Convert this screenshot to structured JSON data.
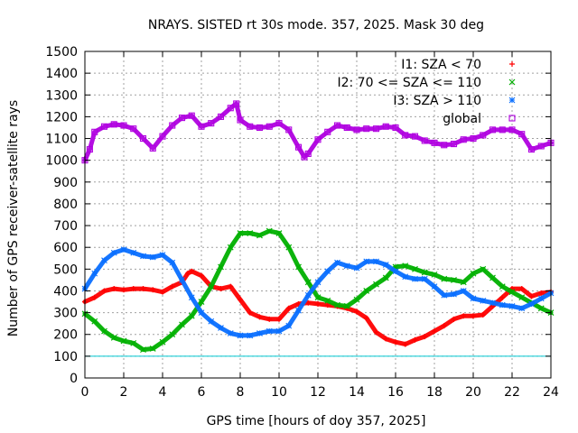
{
  "chart_data": {
    "type": "scatter",
    "title": "NRAYS. SISTED rt 30s mode. 357, 2025. Mask 30 deg",
    "xlabel": "GPS time [hours of doy 357, 2025]",
    "ylabel": "Number of GPS receiver-satellite rays",
    "xlim": [
      0,
      24
    ],
    "ylim": [
      0,
      1500
    ],
    "grid": true,
    "legend_position": "top-right",
    "x_ticks": [
      0,
      2,
      4,
      6,
      8,
      10,
      12,
      14,
      16,
      18,
      20,
      22,
      24
    ],
    "x_tick_labels": [
      "0",
      "2",
      "4",
      "6",
      "8",
      "10",
      "12",
      "14",
      "16",
      "18",
      "20",
      "22",
      "24"
    ],
    "y_ticks": [
      0,
      100,
      200,
      300,
      400,
      500,
      600,
      700,
      800,
      900,
      1000,
      1100,
      1200,
      1300,
      1400,
      1500
    ],
    "y_tick_labels": [
      "0",
      "100",
      "200",
      "300",
      "400",
      "500",
      "600",
      "700",
      "800",
      "900",
      "1000",
      "1100",
      "1200",
      "1300",
      "1400",
      "1500"
    ],
    "reference_line": {
      "y": 100,
      "color": "#00c8d2"
    },
    "series": [
      {
        "name": "I1: SZA < 70",
        "color": "#ff0000",
        "marker": "plus",
        "x": [
          0,
          0.5,
          1,
          1.5,
          2,
          2.5,
          3,
          3.5,
          4,
          4.5,
          5,
          5.3,
          5.5,
          6,
          6.5,
          7,
          7.5,
          8,
          8.5,
          9,
          9.5,
          10,
          10.5,
          11,
          11.5,
          12,
          12.5,
          13,
          13.5,
          14,
          14.5,
          15,
          15.5,
          16,
          16.5,
          17,
          17.5,
          18,
          18.5,
          19,
          19.5,
          20,
          20.5,
          21,
          21.5,
          22,
          22.5,
          23,
          23.5,
          24
        ],
        "y": [
          350,
          370,
          400,
          410,
          405,
          410,
          410,
          405,
          395,
          420,
          440,
          480,
          490,
          470,
          420,
          410,
          420,
          360,
          300,
          280,
          270,
          270,
          320,
          340,
          345,
          340,
          335,
          330,
          320,
          305,
          275,
          210,
          180,
          165,
          155,
          175,
          190,
          215,
          240,
          270,
          285,
          285,
          290,
          330,
          370,
          410,
          410,
          375,
          390,
          395
        ]
      },
      {
        "name": "I2: 70 <= SZA <= 110",
        "color": "#00b000",
        "marker": "cross",
        "x": [
          0,
          0.5,
          1,
          1.5,
          2,
          2.5,
          3,
          3.5,
          4,
          4.5,
          5,
          5.5,
          6,
          6.5,
          7,
          7.5,
          8,
          8.5,
          9,
          9.5,
          10,
          10.5,
          11,
          11.5,
          12,
          12.5,
          13,
          13.5,
          14,
          14.5,
          15,
          15.5,
          16,
          16.5,
          17,
          17.5,
          18,
          18.5,
          19,
          19.5,
          20,
          20.5,
          21,
          21.5,
          22,
          22.5,
          23,
          23.5,
          24
        ],
        "y": [
          295,
          260,
          215,
          185,
          170,
          160,
          130,
          135,
          165,
          200,
          245,
          285,
          350,
          420,
          510,
          600,
          665,
          665,
          655,
          675,
          665,
          600,
          510,
          440,
          370,
          355,
          335,
          330,
          360,
          400,
          430,
          460,
          510,
          515,
          500,
          485,
          475,
          455,
          450,
          440,
          480,
          500,
          460,
          420,
          395,
          370,
          345,
          320,
          300
        ]
      },
      {
        "name": "I3: SZA > 110",
        "color": "#0a6fff",
        "marker": "asterisk",
        "x": [
          0,
          0.5,
          1,
          1.5,
          2,
          2.5,
          3,
          3.5,
          4,
          4.5,
          5,
          5.5,
          6,
          6.5,
          7,
          7.5,
          8,
          8.5,
          9,
          9.5,
          10,
          10.5,
          11,
          11.5,
          12,
          12.5,
          13,
          13.5,
          14,
          14.5,
          15,
          15.5,
          16,
          16.5,
          17,
          17.5,
          18,
          18.5,
          19,
          19.5,
          20,
          20.5,
          21,
          21.5,
          22,
          22.5,
          23,
          23.5,
          24
        ],
        "y": [
          410,
          480,
          540,
          575,
          590,
          575,
          560,
          555,
          565,
          530,
          450,
          370,
          300,
          260,
          230,
          205,
          195,
          195,
          205,
          215,
          215,
          240,
          310,
          380,
          440,
          490,
          530,
          515,
          505,
          535,
          535,
          520,
          490,
          465,
          455,
          455,
          420,
          380,
          385,
          400,
          365,
          355,
          345,
          335,
          330,
          320,
          340,
          365,
          390
        ]
      },
      {
        "name": "global",
        "color": "#b000e0",
        "marker": "square",
        "x": [
          0,
          0.25,
          0.5,
          1,
          1.5,
          2,
          2.5,
          3,
          3.5,
          4,
          4.5,
          5,
          5.5,
          6,
          6.5,
          7,
          7.5,
          7.8,
          8,
          8.5,
          9,
          9.5,
          10,
          10.5,
          11,
          11.3,
          11.5,
          12,
          12.5,
          13,
          13.5,
          14,
          14.5,
          15,
          15.5,
          16,
          16.5,
          17,
          17.5,
          18,
          18.5,
          19,
          19.5,
          20,
          20.5,
          21,
          21.5,
          22,
          22.5,
          23,
          23.5,
          24
        ],
        "y": [
          1000,
          1050,
          1130,
          1155,
          1165,
          1160,
          1145,
          1100,
          1055,
          1110,
          1160,
          1195,
          1205,
          1155,
          1170,
          1200,
          1240,
          1260,
          1185,
          1155,
          1150,
          1155,
          1170,
          1140,
          1060,
          1015,
          1030,
          1095,
          1130,
          1160,
          1150,
          1140,
          1145,
          1145,
          1155,
          1150,
          1115,
          1110,
          1090,
          1080,
          1070,
          1075,
          1095,
          1100,
          1115,
          1140,
          1140,
          1140,
          1120,
          1050,
          1065,
          1080
        ]
      }
    ]
  }
}
